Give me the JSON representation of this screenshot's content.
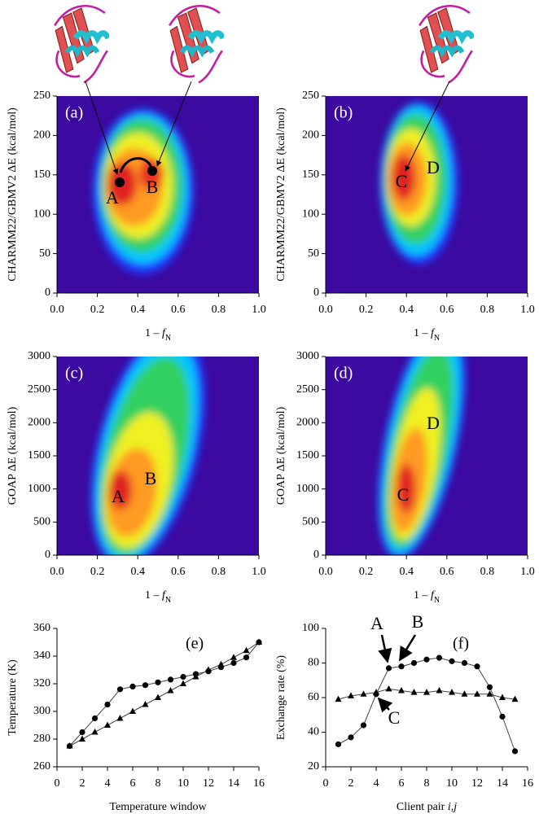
{
  "chart_data": [
    {
      "type": "heatmap",
      "panel_label": "(a)",
      "xlabel_parts": [
        "1 – ",
        "f",
        "N"
      ],
      "ylabel": "CHARMM22/GBMV2 ΔE (kcal/mol)",
      "xlim": [
        0,
        1
      ],
      "xticks": [
        {
          "value": 0,
          "label": "0.0"
        },
        0.2,
        0.4,
        0.6,
        0.8,
        {
          "value": 1,
          "label": "1.0"
        }
      ],
      "ylim": [
        0,
        250
      ],
      "yticks": [
        0,
        50,
        100,
        150,
        200,
        250
      ],
      "annotations": [
        "A",
        "B"
      ]
    },
    {
      "type": "heatmap",
      "panel_label": "(b)",
      "xlabel_parts": [
        "1 – ",
        "f",
        "N"
      ],
      "ylabel": "CHARMM22/GBMV2 ΔE (kcal/mol)",
      "xlim": [
        0,
        1
      ],
      "xticks": [
        {
          "value": 0,
          "label": "0.0"
        },
        0.2,
        0.4,
        0.6,
        0.8,
        {
          "value": 1,
          "label": "1.0"
        }
      ],
      "ylim": [
        0,
        250
      ],
      "yticks": [
        0,
        50,
        100,
        150,
        200,
        250
      ],
      "annotations": [
        "C",
        "D"
      ]
    },
    {
      "type": "heatmap",
      "panel_label": "(c)",
      "xlabel_parts": [
        "1 – ",
        "f",
        "N"
      ],
      "ylabel": "GOAP ΔE (kcal/mol)",
      "xlim": [
        0,
        1
      ],
      "xticks": [
        {
          "value": 0,
          "label": "0.0"
        },
        0.2,
        0.4,
        0.6,
        0.8,
        {
          "value": 1,
          "label": "1.0"
        }
      ],
      "ylim": [
        0,
        3000
      ],
      "yticks": [
        0,
        500,
        1000,
        1500,
        2000,
        2500,
        3000
      ],
      "annotations": [
        "A",
        "B"
      ]
    },
    {
      "type": "heatmap",
      "panel_label": "(d)",
      "xlabel_parts": [
        "1 – ",
        "f",
        "N"
      ],
      "ylabel": "GOAP ΔE (kcal/mol)",
      "xlim": [
        0,
        1
      ],
      "xticks": [
        {
          "value": 0,
          "label": "0.0"
        },
        0.2,
        0.4,
        0.6,
        0.8,
        {
          "value": 1,
          "label": "1.0"
        }
      ],
      "ylim": [
        0,
        3000
      ],
      "yticks": [
        0,
        500,
        1000,
        1500,
        2000,
        2500,
        3000
      ],
      "annotations": [
        "C",
        "D"
      ]
    },
    {
      "type": "line",
      "panel_label": "(e)",
      "xlabel": "Temperature window",
      "ylabel": "Temperature (K)",
      "x": [
        1,
        2,
        3,
        4,
        5,
        6,
        7,
        8,
        9,
        10,
        11,
        12,
        13,
        14,
        15,
        16
      ],
      "series": [
        {
          "marker": "circle",
          "color": "#000000",
          "values": [
            275,
            285,
            295,
            305,
            316,
            318,
            319,
            321,
            323,
            325,
            327,
            329,
            332,
            335,
            339,
            350
          ]
        },
        {
          "marker": "triangle",
          "color": "#000000",
          "values": [
            275,
            280,
            285,
            290,
            295,
            300,
            305,
            310,
            315,
            320,
            325,
            330,
            334,
            339,
            344,
            350
          ]
        }
      ],
      "xlim": [
        0,
        16
      ],
      "xticks": [
        0,
        2,
        4,
        6,
        8,
        10,
        12,
        14,
        16
      ],
      "ylim": [
        260,
        360
      ],
      "yticks": [
        260,
        280,
        300,
        320,
        340,
        360
      ]
    },
    {
      "type": "line",
      "panel_label": "(f)",
      "xlabel_parts": [
        "Client pair ",
        "i,j"
      ],
      "ylabel": "Exchange rate (%)",
      "x": [
        1,
        2,
        3,
        4,
        5,
        6,
        7,
        8,
        9,
        10,
        11,
        12,
        13,
        14,
        15
      ],
      "series": [
        {
          "marker": "circle",
          "color": "#000000",
          "values": [
            33,
            37,
            44,
            62,
            77,
            78,
            80,
            82,
            83,
            81,
            80,
            78,
            66,
            49,
            29
          ]
        },
        {
          "marker": "triangle",
          "color": "#000000",
          "values": [
            59,
            61,
            62,
            63,
            65,
            64,
            63,
            63,
            64,
            63,
            62,
            62,
            62,
            60,
            59
          ]
        }
      ],
      "xlim": [
        0,
        16
      ],
      "xticks": [
        0,
        2,
        4,
        6,
        8,
        10,
        12,
        14,
        16
      ],
      "ylim": [
        20,
        100
      ],
      "yticks": [
        20,
        40,
        60,
        80,
        100
      ],
      "annotations": [
        "A",
        "B",
        "C"
      ]
    }
  ]
}
